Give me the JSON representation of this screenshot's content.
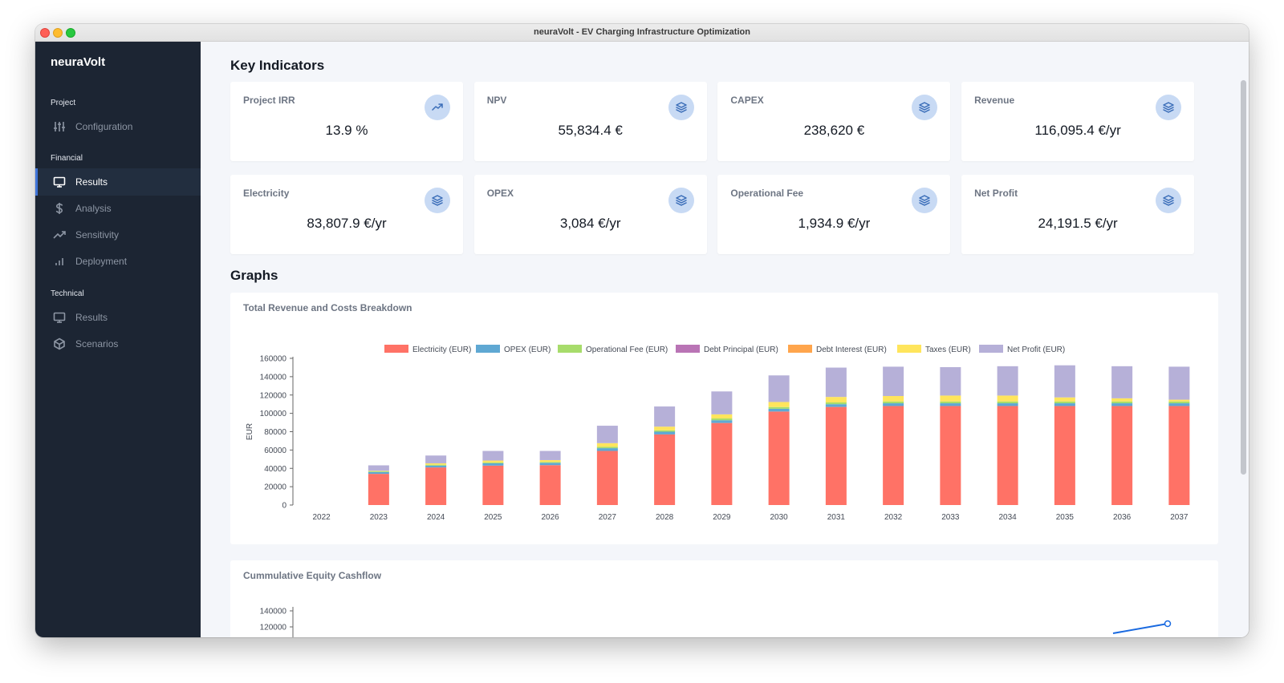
{
  "window": {
    "title": "neuraVolt - EV Charging Infrastructure Optimization"
  },
  "sidebar": {
    "brand": "neuraVolt",
    "sections": [
      {
        "label": "Project",
        "items": [
          {
            "label": "Configuration",
            "icon": "sliders-icon"
          }
        ]
      },
      {
        "label": "Financial",
        "items": [
          {
            "label": "Results",
            "icon": "monitor-icon",
            "active": true
          },
          {
            "label": "Analysis",
            "icon": "dollar-icon"
          },
          {
            "label": "Sensitivity",
            "icon": "trend-icon"
          },
          {
            "label": "Deployment",
            "icon": "bar-chart-icon"
          }
        ]
      },
      {
        "label": "Technical",
        "items": [
          {
            "label": "Results",
            "icon": "monitor-icon"
          },
          {
            "label": "Scenarios",
            "icon": "cube-icon"
          }
        ]
      }
    ]
  },
  "main": {
    "key_indicators_title": "Key Indicators",
    "kpis": [
      {
        "label": "Project IRR",
        "value": "13.9 %",
        "icon": "trend-up-icon"
      },
      {
        "label": "NPV",
        "value": "55,834.4 €",
        "icon": "layers-icon"
      },
      {
        "label": "CAPEX",
        "value": "238,620 €",
        "icon": "layers-icon"
      },
      {
        "label": "Revenue",
        "value": "116,095.4 €/yr",
        "icon": "layers-icon"
      },
      {
        "label": "Electricity",
        "value": "83,807.9 €/yr",
        "icon": "layers-icon"
      },
      {
        "label": "OPEX",
        "value": "3,084 €/yr",
        "icon": "layers-icon"
      },
      {
        "label": "Operational Fee",
        "value": "1,934.9 €/yr",
        "icon": "layers-icon"
      },
      {
        "label": "Net Profit",
        "value": "24,191.5 €/yr",
        "icon": "layers-icon"
      }
    ],
    "graphs_title": "Graphs",
    "chart1_title": "Total Revenue and Costs Breakdown",
    "chart2_title": "Cummulative Equity Cashflow"
  },
  "colors": {
    "accent": "#3f74d8",
    "sidebar_bg": "#1c2533",
    "electricity": "#ff7266",
    "opex": "#5fa8d3",
    "operational_fee": "#a7dc6b",
    "debt_principal": "#b974b5",
    "debt_interest": "#ffa54c",
    "taxes": "#ffe55c",
    "net_profit": "#b6b0d8",
    "line": "#1a6ae0"
  },
  "chart_data": [
    {
      "type": "bar",
      "stacked": true,
      "title": "Total Revenue and Costs Breakdown",
      "ylabel": "EUR",
      "ylim": [
        0,
        160000
      ],
      "yticks": [
        0,
        20000,
        40000,
        60000,
        80000,
        100000,
        120000,
        140000,
        160000
      ],
      "legend_position": "top",
      "categories": [
        "2022",
        "2023",
        "2024",
        "2025",
        "2026",
        "2027",
        "2028",
        "2029",
        "2030",
        "2031",
        "2032",
        "2033",
        "2034",
        "2035",
        "2036",
        "2037"
      ],
      "series": [
        {
          "name": "Electricity (EUR)",
          "color": "#ff7266",
          "values": [
            0,
            34000,
            41000,
            43000,
            43500,
            59000,
            77000,
            89500,
            102000,
            107000,
            108000,
            108000,
            108000,
            108000,
            108000,
            108000
          ]
        },
        {
          "name": "OPEX (EUR)",
          "color": "#5fa8d3",
          "values": [
            0,
            2000,
            2000,
            2500,
            2500,
            3000,
            3000,
            3000,
            3000,
            3000,
            3000,
            3000,
            3000,
            3000,
            3000,
            3000
          ]
        },
        {
          "name": "Operational Fee (EUR)",
          "color": "#a7dc6b",
          "values": [
            0,
            800,
            1000,
            1000,
            1000,
            1500,
            1500,
            1900,
            1900,
            1900,
            1900,
            1900,
            1900,
            1900,
            1900,
            1900
          ]
        },
        {
          "name": "Debt Principal (EUR)",
          "color": "#b974b5",
          "values": [
            0,
            0,
            0,
            0,
            0,
            0,
            0,
            0,
            0,
            0,
            0,
            0,
            0,
            0,
            0,
            0
          ]
        },
        {
          "name": "Debt Interest (EUR)",
          "color": "#ffa54c",
          "values": [
            0,
            0,
            0,
            0,
            0,
            0,
            0,
            0,
            0,
            0,
            0,
            0,
            0,
            0,
            0,
            0
          ]
        },
        {
          "name": "Taxes (EUR)",
          "color": "#ffe55c",
          "values": [
            0,
            500,
            1500,
            2000,
            2000,
            4000,
            4000,
            4500,
            5500,
            6000,
            6000,
            6500,
            6500,
            4500,
            3500,
            2000
          ]
        },
        {
          "name": "Net Profit (EUR)",
          "color": "#b6b0d8",
          "values": [
            0,
            6000,
            8500,
            10500,
            10000,
            19000,
            22000,
            25000,
            29000,
            32000,
            32000,
            31000,
            32000,
            35000,
            35000,
            36000
          ]
        }
      ]
    },
    {
      "type": "line",
      "title": "Cummulative Equity Cashflow",
      "yticks_visible": [
        120000,
        140000
      ],
      "last_point": {
        "x": "2037",
        "y": 124000
      },
      "previous_point": {
        "x": "2036",
        "y": 112000
      }
    }
  ]
}
